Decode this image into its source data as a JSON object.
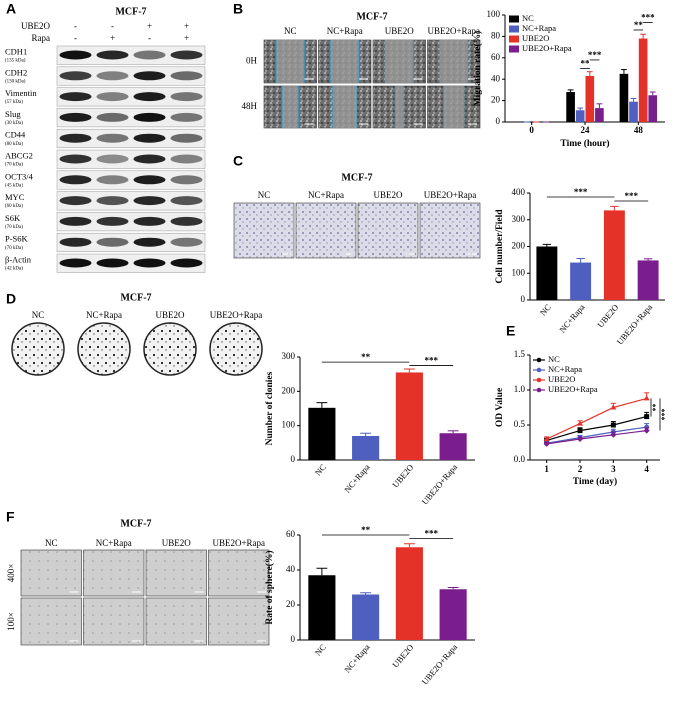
{
  "panels": {
    "A": {
      "label": "A",
      "title": "MCF-7",
      "conditions": [
        {
          "name": "UBE2O",
          "marks": [
            "-",
            "-",
            "+",
            "+"
          ]
        },
        {
          "name": "Rapa",
          "marks": [
            "-",
            "+",
            "-",
            "+"
          ]
        }
      ],
      "rows": [
        {
          "name": "CDH1",
          "size": "(135 kDa)"
        },
        {
          "name": "CDH2",
          "size": "(130 kDa)"
        },
        {
          "name": "Vimentin",
          "size": "(57 kDa)"
        },
        {
          "name": "Slug",
          "size": "(30 kDa)"
        },
        {
          "name": "CD44",
          "size": "(80 kDa)"
        },
        {
          "name": "ABCG2",
          "size": "(70 kDa)"
        },
        {
          "name": "OCT3/4",
          "size": "(45 kDa)"
        },
        {
          "name": "MYC",
          "size": "(60 kDa)"
        },
        {
          "name": "S6K",
          "size": "(70 kDa)"
        },
        {
          "name": "P-S6K",
          "size": "(70 kDa)"
        },
        {
          "name": "β-Actin",
          "size": "(42 kDa)"
        }
      ]
    },
    "B": {
      "label": "B",
      "title": "MCF-7",
      "columns": [
        "NC",
        "NC+Rapa",
        "UBE2O",
        "UBE2O+Rapa"
      ],
      "rows": [
        "0H",
        "48H"
      ]
    },
    "C": {
      "label": "C",
      "title": "MCF-7",
      "columns": [
        "NC",
        "NC+Rapa",
        "UBE2O",
        "UBE2O+Rapa"
      ]
    },
    "D": {
      "label": "D",
      "title": "MCF-7",
      "columns": [
        "NC",
        "NC+Rapa",
        "UBE2O",
        "UBE2O+Rapa"
      ]
    },
    "E": {
      "label": "E"
    },
    "F": {
      "label": "F",
      "title": "MCF-7",
      "columns": [
        "NC",
        "NC+Rapa",
        "UBE2O",
        "UBE2O+Rapa"
      ],
      "rows": [
        "400×",
        "100×"
      ]
    }
  },
  "chart_data": [
    {
      "type": "grouped_bar",
      "ylabel": "Migration rate(%)",
      "xlabel": "Time (hour)",
      "categories": [
        "0",
        "24",
        "48"
      ],
      "series": [
        {
          "name": "NC",
          "color": "#000000",
          "values": [
            0,
            28,
            45
          ],
          "errors": [
            0,
            2,
            4
          ]
        },
        {
          "name": "NC+Rapa",
          "color": "#4f5fbf",
          "values": [
            0,
            11,
            19
          ],
          "errors": [
            0,
            2,
            3
          ]
        },
        {
          "name": "UBE2O",
          "color": "#e53228",
          "values": [
            0,
            43,
            78
          ],
          "errors": [
            0,
            4,
            4
          ]
        },
        {
          "name": "UBE2O+Rapa",
          "color": "#7a1e8e",
          "values": [
            0,
            13,
            25
          ],
          "errors": [
            0,
            4,
            3
          ]
        }
      ],
      "ylim": [
        0,
        100
      ],
      "yticks": [
        0,
        20,
        40,
        60,
        80,
        100
      ],
      "legend": "upper left",
      "annotations": [
        "**",
        "***",
        "**",
        "***"
      ]
    },
    {
      "type": "bar",
      "ylabel": "Cell number/Field",
      "categories": [
        "NC",
        "NC+Rapa",
        "UBE2O",
        "UBE2O+Rapa"
      ],
      "values": [
        200,
        140,
        335,
        148
      ],
      "errors": [
        8,
        15,
        15,
        6
      ],
      "colors": [
        "#000000",
        "#4f5fbf",
        "#e53228",
        "#7a1e8e"
      ],
      "ylim": [
        0,
        400
      ],
      "yticks": [
        0,
        100,
        200,
        300,
        400
      ],
      "annotations": [
        "***",
        "***"
      ]
    },
    {
      "type": "bar",
      "ylabel": "Number of clonies",
      "categories": [
        "NC",
        "NC+Rapa",
        "UBE2O",
        "UBE2O+Rapa"
      ],
      "values": [
        152,
        70,
        255,
        78
      ],
      "errors": [
        15,
        8,
        10,
        7
      ],
      "colors": [
        "#000000",
        "#4f5fbf",
        "#e53228",
        "#7a1e8e"
      ],
      "ylim": [
        0,
        300
      ],
      "yticks": [
        0,
        100,
        200,
        300
      ],
      "annotations": [
        "**",
        "***"
      ]
    },
    {
      "type": "line",
      "ylabel": "OD Value",
      "xlabel": "Time (day)",
      "x": [
        1,
        2,
        3,
        4
      ],
      "xlim": [
        0.5,
        4.4
      ],
      "xticks": [
        1,
        2,
        3,
        4
      ],
      "series": [
        {
          "name": "NC",
          "color": "#000000",
          "values": [
            0.28,
            0.42,
            0.5,
            0.62
          ],
          "errors": [
            0.03,
            0.04,
            0.05,
            0.06
          ]
        },
        {
          "name": "NC+Rapa",
          "color": "#4f5fbf",
          "values": [
            0.24,
            0.32,
            0.4,
            0.47
          ],
          "errors": [
            0.02,
            0.03,
            0.04,
            0.05
          ]
        },
        {
          "name": "UBE2O",
          "color": "#e53228",
          "values": [
            0.3,
            0.52,
            0.75,
            0.88
          ],
          "errors": [
            0.03,
            0.04,
            0.06,
            0.08
          ]
        },
        {
          "name": "UBE2O+Rapa",
          "color": "#7a1e8e",
          "values": [
            0.23,
            0.3,
            0.36,
            0.42
          ],
          "errors": [
            0.02,
            0.03,
            0.04,
            0.04
          ]
        }
      ],
      "ylim": [
        0,
        1.5
      ],
      "yticks": [
        {
          "value": 0,
          "label": "0.0"
        },
        0.5,
        {
          "value": 1,
          "label": "1.0"
        },
        1.5
      ],
      "legend": "upper left",
      "annotations": [
        "**",
        "***"
      ]
    },
    {
      "type": "bar",
      "ylabel": "Rate of sphere(%)",
      "categories": [
        "NC",
        "NC+Rapa",
        "UBE2O",
        "UBE2O+Rapa"
      ],
      "values": [
        37,
        26,
        53,
        29
      ],
      "errors": [
        4,
        1,
        2,
        1
      ],
      "colors": [
        "#000000",
        "#4f5fbf",
        "#e53228",
        "#7a1e8e"
      ],
      "ylim": [
        0,
        60
      ],
      "yticks": [
        0,
        20,
        40,
        60
      ],
      "annotations": [
        "**",
        "***"
      ]
    }
  ]
}
